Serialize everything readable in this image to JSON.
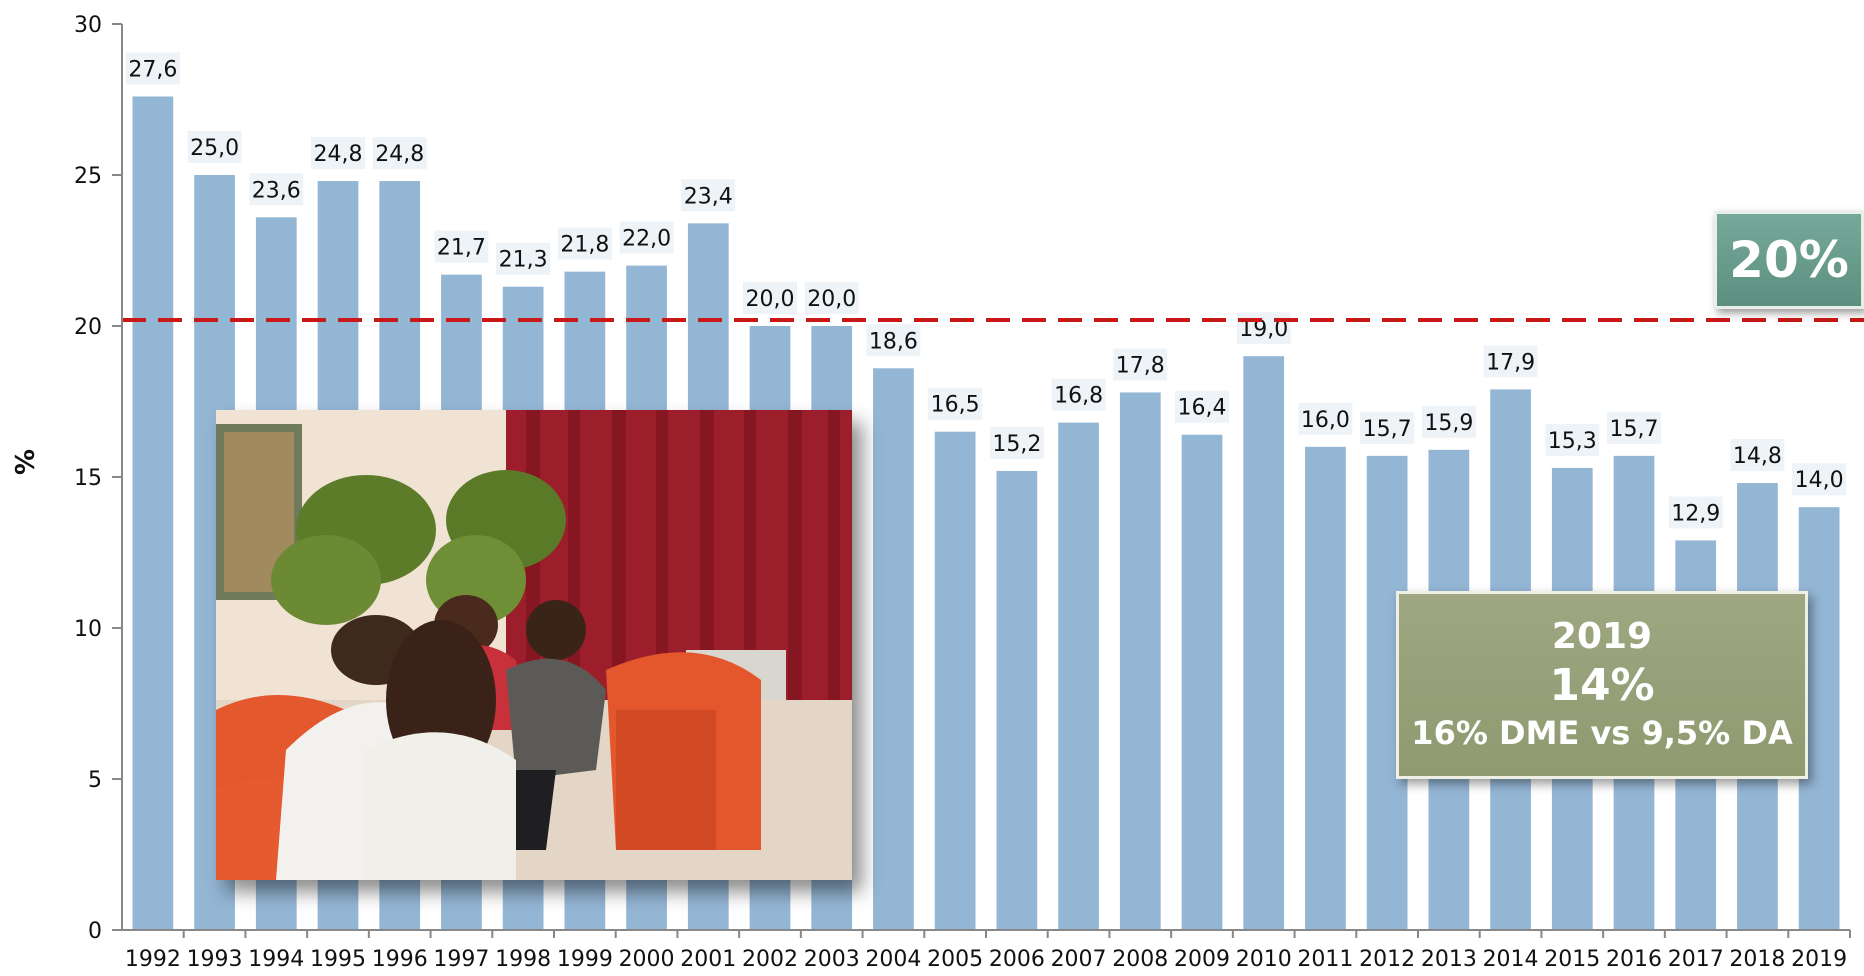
{
  "chart_data": {
    "type": "bar",
    "ylabel": "%",
    "ylim": [
      0,
      30
    ],
    "yticks": [
      "0",
      "5",
      "10",
      "15",
      "20",
      "25",
      "30"
    ],
    "categories": [
      "1992",
      "1993",
      "1994",
      "1995",
      "1996",
      "1997",
      "1998",
      "1999",
      "2000",
      "2001",
      "2002",
      "2003",
      "2004",
      "2005",
      "2006",
      "2007",
      "2008",
      "2009",
      "2010",
      "2011",
      "2012",
      "2013",
      "2014",
      "2015",
      "2016",
      "2017",
      "2018",
      "2019"
    ],
    "values": [
      27.6,
      25.0,
      23.6,
      24.8,
      24.8,
      21.7,
      21.3,
      21.8,
      22.0,
      23.4,
      20.0,
      20.0,
      18.6,
      16.5,
      15.2,
      16.8,
      17.8,
      16.4,
      19.0,
      16.0,
      15.7,
      15.9,
      17.9,
      15.3,
      15.7,
      12.9,
      14.8,
      14.0
    ],
    "value_labels": [
      "27,6",
      "25,0",
      "23,6",
      "24,8",
      "24,8",
      "21,7",
      "21,3",
      "21,8",
      "22,0",
      "23,4",
      "20,0",
      "20,0",
      "18,6",
      "16,5",
      "15,2",
      "16,8",
      "17,8",
      "16,4",
      "19,0",
      "16,0",
      "15,7",
      "15,9",
      "17,9",
      "15,3",
      "15,7",
      "12,9",
      "14,8",
      "14,0"
    ],
    "reference_line": 20.2,
    "bar_color": "#94b6d5",
    "reference_color": "#c81818",
    "grid": false
  },
  "reference_badge": {
    "text": "20%",
    "color": "#6b9d8e"
  },
  "info_box": {
    "year": "2019",
    "value": "14%",
    "detail": "16% DME vs 9,5% DA",
    "color": "#97a07a"
  }
}
